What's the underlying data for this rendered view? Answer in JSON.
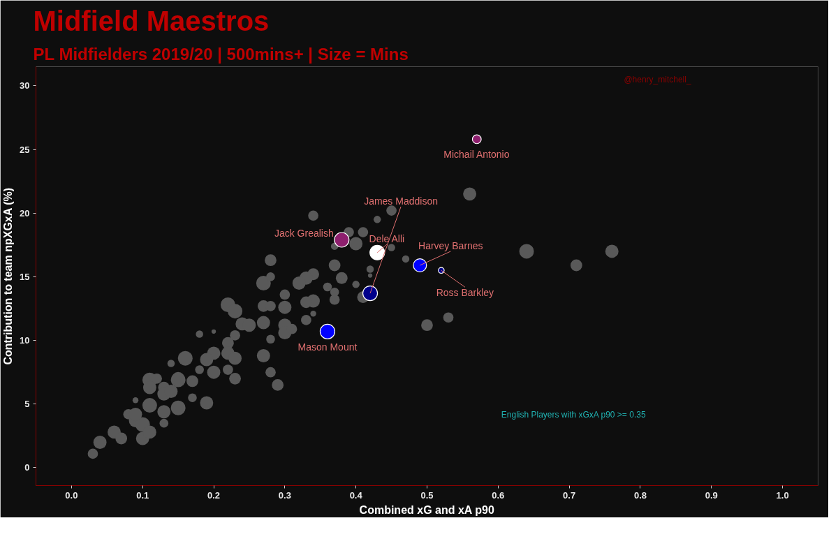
{
  "chart_data": {
    "type": "bubble",
    "title": "Midfield Maestros",
    "subtitle": "PL Midfielders 2019/20 | 500mins+ | Size = Mins",
    "xlabel": "Combined xG and xA p90",
    "ylabel": "Contribution to team npXGxA (%)",
    "xlim": [
      -0.05,
      1.05
    ],
    "xticks": [
      {
        "value": 0,
        "label": "0.0"
      },
      0.1,
      0.2,
      0.3,
      0.4,
      0.5,
      0.6,
      0.7,
      0.8,
      0.9,
      {
        "value": 1,
        "label": "1.0"
      }
    ],
    "ylim": [
      -1.4,
      31.5
    ],
    "yticks": [
      0,
      5,
      10,
      15,
      20,
      25,
      30
    ],
    "grid": false,
    "marker": "circle",
    "annotations": [
      "@henry_mitchell_",
      "English Players with xGxA p90 >= 0.35"
    ],
    "series": [
      {
        "color": "#595959",
        "x": [
          0.56,
          0.64,
          0.71,
          0.76,
          0.53,
          0.5,
          0.34,
          0.45,
          0.43,
          0.39,
          0.41,
          0.4,
          0.37,
          0.45,
          0.47,
          0.37,
          0.42,
          0.42,
          0.38,
          0.4,
          0.36,
          0.37,
          0.34,
          0.34,
          0.37,
          0.41,
          0.34,
          0.28,
          0.33,
          0.32,
          0.27,
          0.28,
          0.3,
          0.3,
          0.27,
          0.28,
          0.22,
          0.23,
          0.33,
          0.33,
          0.24,
          0.25,
          0.27,
          0.3,
          0.3,
          0.31,
          0.18,
          0.2,
          0.23,
          0.22,
          0.28,
          0.16,
          0.2,
          0.19,
          0.22,
          0.23,
          0.22,
          0.27,
          0.14,
          0.18,
          0.2,
          0.28,
          0.23,
          0.29,
          0.11,
          0.15,
          0.17,
          0.13,
          0.03,
          0.04,
          0.06,
          0.07,
          0.08,
          0.09,
          0.1,
          0.1,
          0.11,
          0.09,
          0.13,
          0.11,
          0.12,
          0.11,
          0.13,
          0.13,
          0.14,
          0.15,
          0.15,
          0.17,
          0.09,
          0.19
        ],
        "values": [
          21.5,
          17.0,
          15.9,
          17.0,
          11.8,
          11.2,
          19.8,
          20.2,
          19.5,
          18.5,
          18.5,
          17.6,
          17.4,
          17.3,
          16.4,
          15.9,
          15.6,
          15.1,
          14.9,
          14.4,
          14.2,
          13.8,
          15.2,
          13.1,
          13.2,
          13.4,
          12.1,
          16.3,
          14.9,
          14.5,
          14.5,
          15.0,
          13.6,
          12.6,
          12.7,
          12.7,
          12.8,
          12.3,
          13.0,
          11.6,
          11.3,
          11.2,
          11.4,
          11.2,
          10.6,
          10.9,
          10.5,
          10.7,
          10.4,
          9.8,
          10.1,
          8.6,
          9.0,
          8.5,
          9.0,
          8.6,
          7.7,
          8.8,
          8.2,
          7.7,
          7.5,
          7.5,
          7.0,
          6.5,
          6.9,
          6.9,
          6.8,
          6.3,
          1.1,
          2.0,
          2.8,
          2.3,
          4.2,
          3.7,
          3.4,
          2.3,
          2.8,
          4.2,
          3.5,
          6.3,
          7.0,
          4.9,
          4.4,
          5.8,
          6.0,
          4.7,
          7.0,
          5.5,
          5.3,
          5.1
        ],
        "sizes": [
          0.81,
          1,
          0.64,
          0.81,
          0.49,
          0.64,
          0.49,
          0.49,
          0.25,
          0.49,
          0.49,
          0.81,
          0.25,
          0.25,
          0.25,
          0.64,
          0.25,
          0.09,
          0.64,
          0.25,
          0.36,
          0.36,
          0.64,
          0.81,
          0.49,
          0.64,
          0.16,
          0.64,
          0.81,
          0.81,
          1,
          0.36,
          0.49,
          0.81,
          0.64,
          0.49,
          1,
          1,
          0.64,
          0.49,
          0.81,
          0.81,
          0.81,
          0.81,
          0.81,
          0.49,
          0.25,
          0.09,
          0.49,
          0.64,
          0.36,
          1,
          0.81,
          0.81,
          0.81,
          0.81,
          0.49,
          0.81,
          0.25,
          0.36,
          0.81,
          0.49,
          0.64,
          0.64,
          1,
          1,
          0.64,
          0.64,
          0.49,
          0.81,
          0.81,
          0.64,
          0.49,
          0.81,
          1,
          0.81,
          0.81,
          0.81,
          0.36,
          0.81,
          0.49,
          1,
          0.81,
          0.81,
          0.81,
          1,
          0.81,
          0.36,
          0.16,
          0.81
        ]
      },
      {
        "name": "Michail Antonio",
        "color": "#8e1f6e",
        "x": [
          0.57
        ],
        "values": [
          25.8
        ],
        "sizes": [
          0.36
        ]
      },
      {
        "name": "Jack Grealish",
        "color": "#8e1f6e",
        "x": [
          0.38
        ],
        "values": [
          17.9
        ],
        "sizes": [
          1
        ]
      },
      {
        "name": "Dele Alli",
        "color": "#ffffff",
        "x": [
          0.43
        ],
        "values": [
          16.9
        ],
        "sizes": [
          1
        ]
      },
      {
        "name": "James Maddison",
        "color": "#00008b",
        "x": [
          0.42
        ],
        "values": [
          13.7
        ],
        "sizes": [
          1
        ]
      },
      {
        "name": "Harvey Barnes",
        "color": "#0000ff",
        "x": [
          0.49
        ],
        "values": [
          15.9
        ],
        "sizes": [
          0.81
        ]
      },
      {
        "name": "Ross Barkley",
        "color": "#00008b",
        "x": [
          0.52
        ],
        "values": [
          15.5
        ],
        "sizes": [
          0.16
        ]
      },
      {
        "name": "Mason Mount",
        "color": "#0000ff",
        "x": [
          0.36
        ],
        "values": [
          10.7
        ],
        "sizes": [
          1
        ]
      }
    ]
  }
}
